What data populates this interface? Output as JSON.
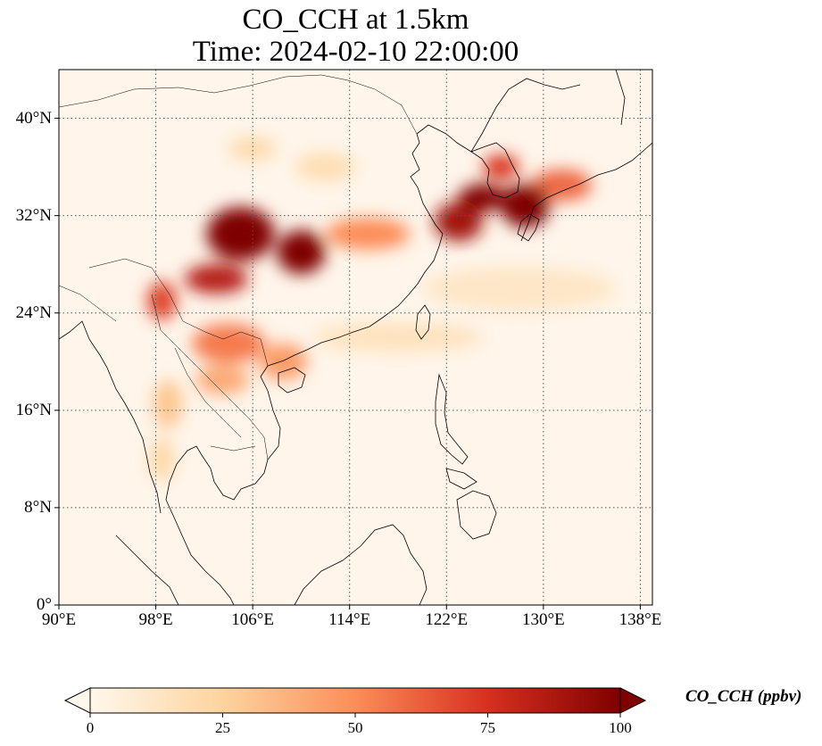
{
  "title": {
    "line1": "CO_CCH at 1.5km",
    "line2": "Time: 2024-02-10 22:00:00"
  },
  "map": {
    "projection": "PlateCarree",
    "lon_range": [
      90,
      139
    ],
    "lat_range": [
      0,
      44
    ],
    "gridlines": "dotted",
    "coastlines": true,
    "borders": true,
    "lon_ticks": [
      {
        "value": 90,
        "label": "90°E"
      },
      {
        "value": 98,
        "label": "98°E"
      },
      {
        "value": 106,
        "label": "106°E"
      },
      {
        "value": 114,
        "label": "114°E"
      },
      {
        "value": 122,
        "label": "122°E"
      },
      {
        "value": 130,
        "label": "130°E"
      },
      {
        "value": 138,
        "label": "138°E"
      }
    ],
    "lat_ticks": [
      {
        "value": 0,
        "label": "0°"
      },
      {
        "value": 8,
        "label": "8°N"
      },
      {
        "value": 16,
        "label": "16°N"
      },
      {
        "value": 24,
        "label": "24°N"
      },
      {
        "value": 32,
        "label": "32°N"
      },
      {
        "value": 40,
        "label": "40°N"
      }
    ],
    "plumes": [
      {
        "lon": 105.0,
        "lat": 30.5,
        "rx": 2.8,
        "ry": 2.2,
        "value": 100
      },
      {
        "lon": 110.0,
        "lat": 29.0,
        "rx": 2.0,
        "ry": 1.8,
        "value": 100
      },
      {
        "lon": 103.0,
        "lat": 26.8,
        "rx": 2.6,
        "ry": 1.2,
        "value": 85
      },
      {
        "lon": 98.5,
        "lat": 25.0,
        "rx": 1.2,
        "ry": 1.6,
        "value": 70
      },
      {
        "lon": 104.0,
        "lat": 21.5,
        "rx": 3.0,
        "ry": 1.6,
        "value": 55
      },
      {
        "lon": 103.5,
        "lat": 18.5,
        "rx": 2.2,
        "ry": 1.2,
        "value": 40
      },
      {
        "lon": 108.5,
        "lat": 20.0,
        "rx": 2.0,
        "ry": 1.5,
        "value": 45
      },
      {
        "lon": 115.5,
        "lat": 30.5,
        "rx": 3.5,
        "ry": 1.3,
        "value": 50
      },
      {
        "lon": 123.0,
        "lat": 31.5,
        "rx": 2.0,
        "ry": 1.6,
        "value": 90
      },
      {
        "lon": 125.0,
        "lat": 33.5,
        "rx": 2.0,
        "ry": 1.1,
        "value": 100
      },
      {
        "lon": 128.5,
        "lat": 32.8,
        "rx": 2.0,
        "ry": 1.8,
        "value": 100
      },
      {
        "lon": 126.5,
        "lat": 36.0,
        "rx": 1.5,
        "ry": 1.0,
        "value": 75
      },
      {
        "lon": 131.5,
        "lat": 34.5,
        "rx": 2.5,
        "ry": 1.3,
        "value": 60
      },
      {
        "lon": 106.0,
        "lat": 37.5,
        "rx": 2.0,
        "ry": 1.0,
        "value": 20
      },
      {
        "lon": 112.0,
        "lat": 36.0,
        "rx": 2.5,
        "ry": 1.2,
        "value": 18
      },
      {
        "lon": 118.0,
        "lat": 22.0,
        "rx": 7.0,
        "ry": 1.2,
        "value": 15
      },
      {
        "lon": 128.0,
        "lat": 26.0,
        "rx": 8.0,
        "ry": 1.8,
        "value": 12
      },
      {
        "lon": 99.0,
        "lat": 16.5,
        "rx": 1.2,
        "ry": 2.0,
        "value": 30
      },
      {
        "lon": 98.5,
        "lat": 12.0,
        "rx": 1.0,
        "ry": 1.8,
        "value": 22
      }
    ]
  },
  "colorbar": {
    "label": "CO_CCH (ppbv)",
    "min": 0,
    "max": 100,
    "extend": "both",
    "colormap": "OrRd",
    "ticks": [
      {
        "value": 0,
        "label": "0"
      },
      {
        "value": 25,
        "label": "25"
      },
      {
        "value": 50,
        "label": "50"
      },
      {
        "value": 75,
        "label": "75"
      },
      {
        "value": 100,
        "label": "100"
      }
    ]
  }
}
